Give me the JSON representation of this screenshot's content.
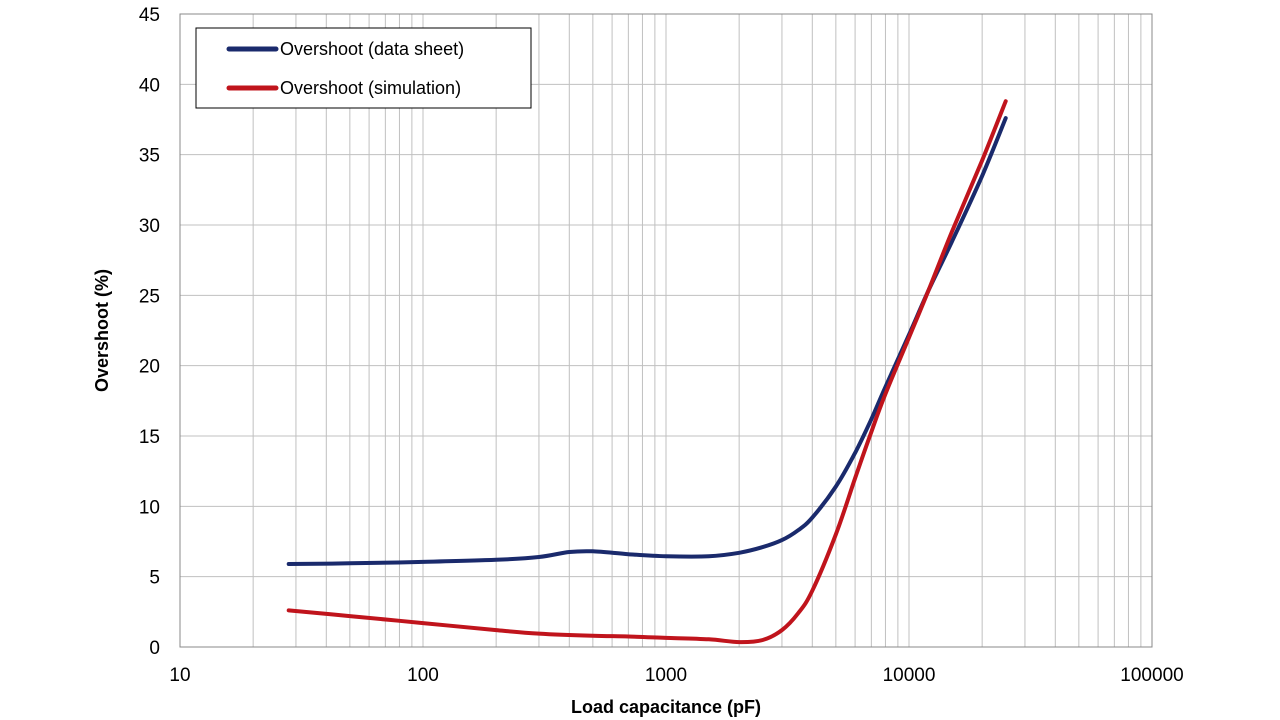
{
  "chart_data": {
    "type": "line",
    "xlabel": "Load capacitance (pF)",
    "ylabel": "Overshoot (%)",
    "xscale": "log",
    "xlim": [
      10,
      100000
    ],
    "ylim": [
      0,
      45
    ],
    "x_ticks": [
      "10",
      "100",
      "1000",
      "10000",
      "100000"
    ],
    "y_ticks": [
      "0",
      "5",
      "10",
      "15",
      "20",
      "25",
      "30",
      "35",
      "40",
      "45"
    ],
    "grid": true,
    "legend_position": "top-left",
    "series": [
      {
        "name": "Overshoot (data sheet)",
        "color": "#1a2a6c",
        "x": [
          28,
          50,
          100,
          200,
          300,
          400,
          500,
          700,
          1000,
          1500,
          2000,
          2500,
          3000,
          3500,
          4000,
          5000,
          6000,
          7000,
          8000,
          10000,
          12000,
          15000,
          20000,
          25000
        ],
        "y": [
          5.9,
          5.95,
          6.05,
          6.2,
          6.4,
          6.75,
          6.8,
          6.6,
          6.45,
          6.45,
          6.7,
          7.1,
          7.6,
          8.3,
          9.2,
          11.4,
          13.8,
          16.2,
          18.5,
          22.2,
          25.3,
          28.8,
          33.5,
          37.6
        ]
      },
      {
        "name": "Overshoot (simulation)",
        "color": "#c0141c",
        "x": [
          28,
          50,
          100,
          200,
          300,
          500,
          700,
          1000,
          1500,
          2000,
          2500,
          3000,
          3500,
          4000,
          5000,
          6000,
          7000,
          8000,
          10000,
          12000,
          15000,
          20000,
          25000
        ],
        "y": [
          2.6,
          2.2,
          1.7,
          1.2,
          0.95,
          0.8,
          0.75,
          0.65,
          0.55,
          0.35,
          0.5,
          1.2,
          2.4,
          4.0,
          8.0,
          12.0,
          15.3,
          18.0,
          22.0,
          25.3,
          29.5,
          34.6,
          38.8
        ]
      }
    ]
  }
}
